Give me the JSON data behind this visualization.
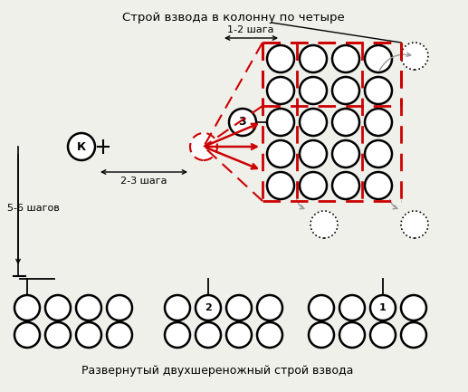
{
  "title_top": "Строй взвода в колонну по четыре",
  "title_bottom": "Развернутый двухшереножный строй взвода",
  "label_12": "1-2 шага",
  "label_23": "2-3 шага",
  "label_56": "5-6 шагов",
  "label_3": "3",
  "label_k": "К",
  "label_1": "1",
  "label_2": "2",
  "bg_color": "#f0f0eb",
  "circle_color": "black",
  "red_color": "#cc0000",
  "gray_color": "#999999",
  "white": "white"
}
